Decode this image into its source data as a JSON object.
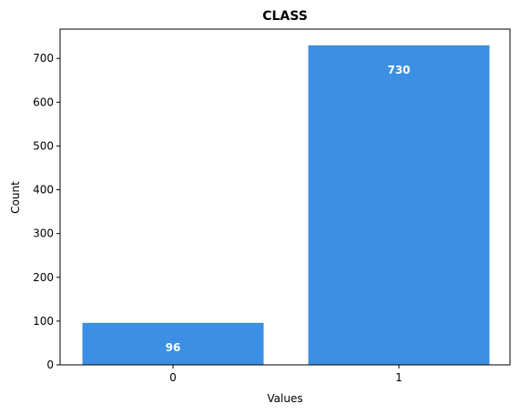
{
  "chart_data": {
    "type": "bar",
    "title": "CLASS",
    "xlabel": "Values",
    "ylabel": "Count",
    "categories": [
      "0",
      "1"
    ],
    "values": [
      96,
      730
    ],
    "data_labels": [
      "96",
      "730"
    ],
    "ylim": [
      0,
      767
    ],
    "yticks": [
      0,
      100,
      200,
      300,
      400,
      500,
      600,
      700
    ],
    "ytick_labels": [
      "0",
      "100",
      "200",
      "300",
      "400",
      "500",
      "600",
      "700"
    ],
    "bar_color": "#3c8fe2",
    "data_label_color": "#ffffff",
    "grid": false,
    "legend": "none"
  }
}
